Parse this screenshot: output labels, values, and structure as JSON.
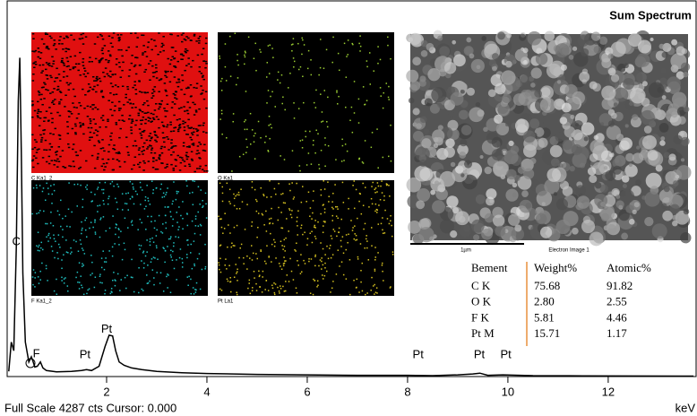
{
  "chart_data": {
    "type": "line",
    "title": "Sum Spectrum",
    "x_label": "keV",
    "footer": "Full Scale 4287 cts Cursor: 0.000",
    "x": [
      0.05,
      0.1,
      0.15,
      0.2,
      0.24,
      0.27,
      0.3,
      0.33,
      0.38,
      0.45,
      0.5,
      0.53,
      0.57,
      0.62,
      0.68,
      0.73,
      0.8,
      1.0,
      1.3,
      1.5,
      1.6,
      1.7,
      1.85,
      1.97,
      2.05,
      2.12,
      2.18,
      2.25,
      2.35,
      2.5,
      2.7,
      3.0,
      3.5,
      4.0,
      5.0,
      6.0,
      7.0,
      8.0,
      8.5,
      9.0,
      9.3,
      9.44,
      9.6,
      9.9,
      10.5,
      11.5,
      12.5,
      13.7
    ],
    "series": [
      {
        "name": "Spectrum",
        "color": "#000000",
        "values": [
          60,
          400,
          300,
          1500,
          3200,
          3700,
          2600,
          1200,
          400,
          170,
          230,
          180,
          110,
          120,
          170,
          100,
          70,
          55,
          60,
          70,
          80,
          70,
          120,
          350,
          480,
          470,
          300,
          170,
          130,
          100,
          80,
          60,
          45,
          35,
          25,
          20,
          15,
          15,
          10,
          20,
          30,
          40,
          15,
          20,
          10,
          8,
          6,
          5
        ]
      }
    ],
    "xlim": [
      0,
      13.77
    ],
    "ylim": [
      0,
      4287
    ],
    "xticks": [
      2,
      4,
      6,
      8,
      10,
      12
    ],
    "annotations": [
      {
        "text": "C",
        "x": 0.2
      },
      {
        "text": "F",
        "x": 0.6
      },
      {
        "text": "Pt",
        "x": 1.57
      },
      {
        "text": "Pt",
        "x": 2.0
      },
      {
        "text": "Pt",
        "x": 8.21
      },
      {
        "text": "Pt",
        "x": 9.43
      },
      {
        "text": "Pt",
        "x": 9.96
      }
    ]
  },
  "maps": [
    {
      "label": "C Ka1_2"
    },
    {
      "label": "O Ka1"
    },
    {
      "label": "F Ka1_2"
    },
    {
      "label": "Pt La1"
    }
  ],
  "electron_image": {
    "scale": "1µm",
    "label": "Electron Image 1"
  },
  "table": {
    "header": [
      "Bement",
      "Weight%",
      "Atomic%"
    ],
    "rows": [
      [
        "C K",
        "75.68",
        "91.82"
      ],
      [
        "O K",
        "2.80",
        "2.55"
      ],
      [
        "F K",
        "5.81",
        "4.46"
      ],
      [
        "Pt M",
        "15.71",
        "1.17"
      ]
    ]
  }
}
